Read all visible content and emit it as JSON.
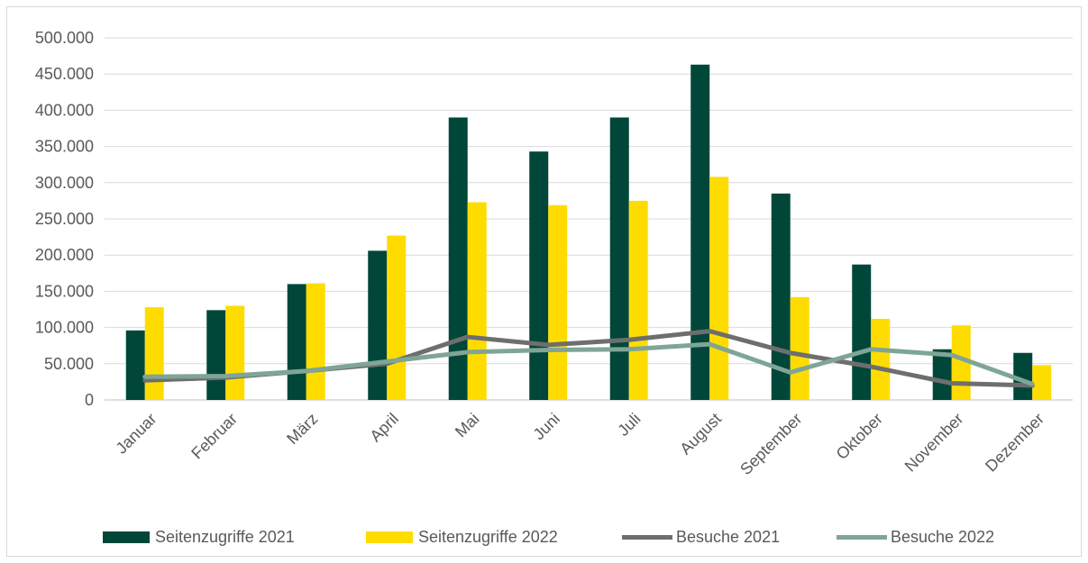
{
  "chart_data": {
    "type": "bar",
    "categories": [
      "Januar",
      "Februar",
      "März",
      "April",
      "Mai",
      "Juni",
      "Juli",
      "August",
      "September",
      "Oktober",
      "November",
      "Dezember"
    ],
    "series": [
      {
        "name": "Seitenzugriffe 2021",
        "kind": "bar",
        "color": "#00473a",
        "values": [
          96000,
          124000,
          160000,
          206000,
          390000,
          343000,
          390000,
          463000,
          285000,
          187000,
          70000,
          65000
        ]
      },
      {
        "name": "Seitenzugriffe 2022",
        "kind": "bar",
        "color": "#ffdc00",
        "values": [
          128000,
          130000,
          161000,
          227000,
          273000,
          269000,
          275000,
          308000,
          142000,
          112000,
          103000,
          48000
        ]
      },
      {
        "name": "Besuche 2021",
        "kind": "line",
        "color": "#6e6e6e",
        "values": [
          27000,
          31000,
          40000,
          50000,
          87000,
          76000,
          83000,
          95000,
          65000,
          46000,
          23000,
          20000
        ]
      },
      {
        "name": "Besuche 2022",
        "kind": "line",
        "color": "#7fa596",
        "values": [
          32000,
          33000,
          40000,
          53000,
          66000,
          69000,
          70000,
          77000,
          38000,
          70000,
          62000,
          22000
        ]
      }
    ],
    "ylim": [
      0,
      500000
    ],
    "yticks": [
      "0",
      "50.000",
      "100.000",
      "150.000",
      "200.000",
      "250.000",
      "300.000",
      "350.000",
      "400.000",
      "450.000",
      "500.000"
    ],
    "xlabel": "",
    "ylabel": "",
    "grid": true,
    "legend": "bottom"
  }
}
